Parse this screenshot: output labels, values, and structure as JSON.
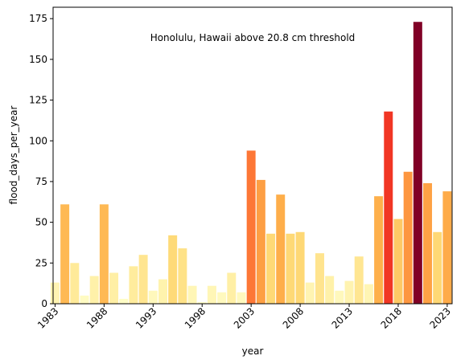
{
  "chart_data": {
    "type": "bar",
    "title": "Honolulu, Hawaii above 20.8 cm threshold",
    "xlabel": "year",
    "ylabel": "flood_days_per_year",
    "xlim": [
      1982.8,
      2023.5
    ],
    "ylim": [
      0,
      182
    ],
    "grid": false,
    "legend": "none",
    "xticks": [
      1983,
      1988,
      1993,
      1998,
      2003,
      2008,
      2013,
      2018,
      2023
    ],
    "xtick_labels": [
      "1983",
      "1988",
      "1993",
      "1998",
      "2003",
      "2008",
      "2013",
      "2018",
      "2023"
    ],
    "yticks": [
      0,
      25,
      50,
      75,
      100,
      125,
      150,
      175
    ],
    "ytick_labels": [
      "0",
      "25",
      "50",
      "75",
      "100",
      "125",
      "150",
      "175"
    ],
    "colormap_max": 173,
    "x": [
      1983,
      1984,
      1985,
      1986,
      1987,
      1988,
      1989,
      1990,
      1991,
      1992,
      1993,
      1994,
      1995,
      1996,
      1997,
      1998,
      1999,
      2000,
      2001,
      2002,
      2003,
      2004,
      2005,
      2006,
      2007,
      2008,
      2009,
      2010,
      2011,
      2012,
      2013,
      2014,
      2015,
      2016,
      2017,
      2018,
      2019,
      2020,
      2021,
      2022,
      2023
    ],
    "values": [
      13,
      61,
      25,
      5,
      17,
      61,
      19,
      3,
      23,
      30,
      8,
      15,
      42,
      34,
      11,
      1,
      11,
      7,
      19,
      7,
      94,
      76,
      43,
      67,
      43,
      44,
      13,
      31,
      17,
      8,
      14,
      29,
      12,
      66,
      118,
      52,
      81,
      173,
      74,
      44,
      69
    ]
  }
}
